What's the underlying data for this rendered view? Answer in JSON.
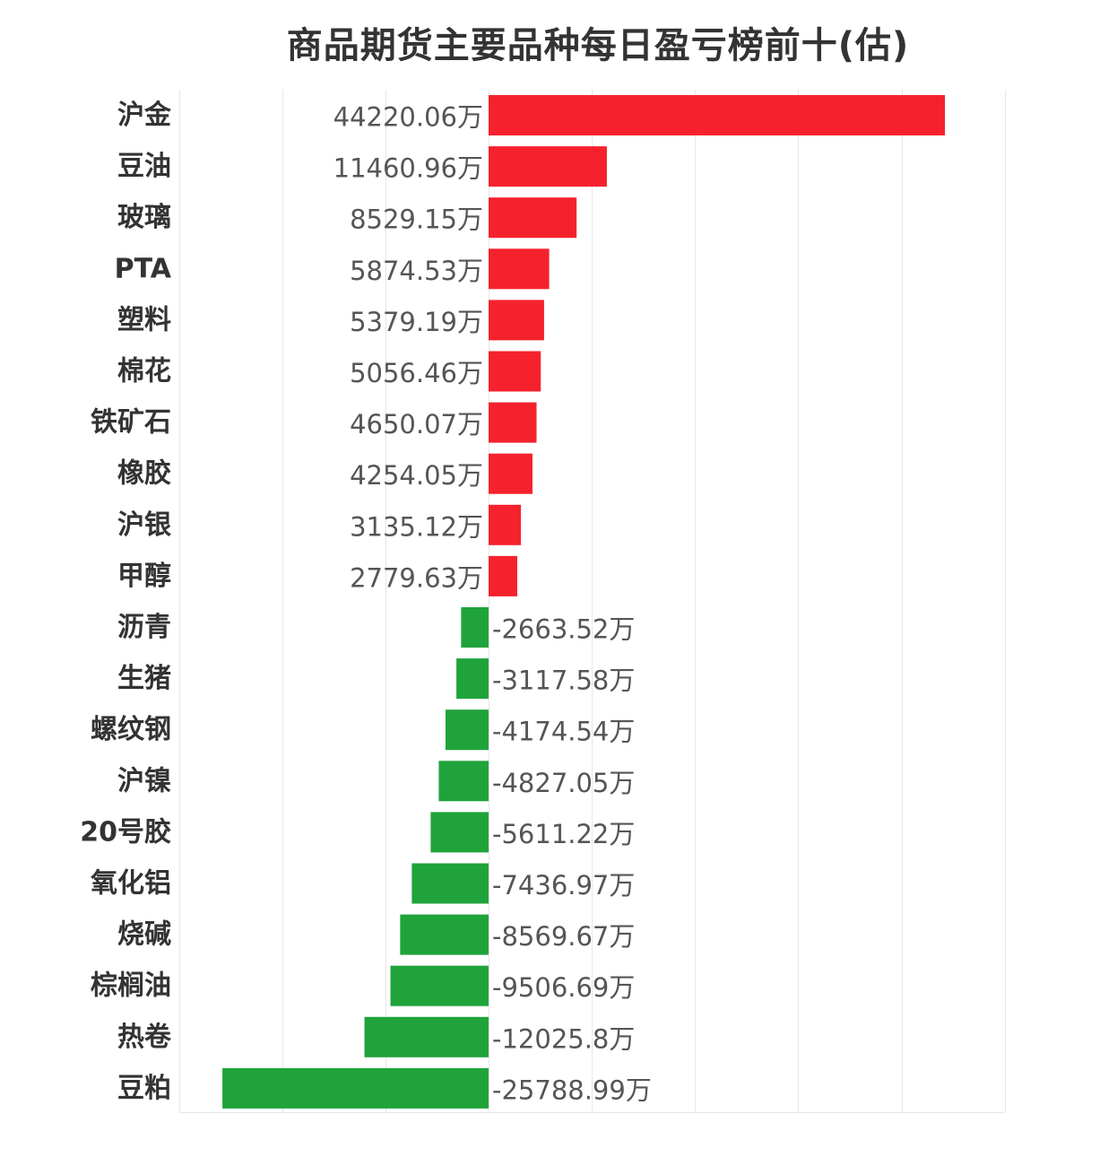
{
  "chart_data": {
    "type": "bar",
    "orientation": "horizontal",
    "title": "商品期货主要品种每日盈亏榜前十(估)",
    "unit": "万",
    "categories": [
      "沪金",
      "豆油",
      "玻璃",
      "PTA",
      "塑料",
      "棉花",
      "铁矿石",
      "橡胶",
      "沪银",
      "甲醇",
      "沥青",
      "生猪",
      "螺纹钢",
      "沪镍",
      "20号胶",
      "氧化铝",
      "烧碱",
      "棕榈油",
      "热卷",
      "豆粕"
    ],
    "values": [
      44220.06,
      11460.96,
      8529.15,
      5874.53,
      5379.19,
      5056.46,
      4650.07,
      4254.05,
      3135.12,
      2779.63,
      -2663.52,
      -3117.58,
      -4174.54,
      -4827.05,
      -5611.22,
      -7436.97,
      -8569.67,
      -9506.69,
      -12025.8,
      -25788.99
    ],
    "value_labels": [
      "44220.06万",
      "11460.96万",
      "8529.15万",
      "5874.53万",
      "5379.19万",
      "5056.46万",
      "4650.07万",
      "4254.05万",
      "3135.12万",
      "2779.63万",
      "-2663.52万",
      "-3117.58万",
      "-4174.54万",
      "-4827.05万",
      "-5611.22万",
      "-7436.97万",
      "-8569.67万",
      "-9506.69万",
      "-12025.8万",
      "-25788.99万"
    ],
    "xlim": [
      -30000,
      50000
    ],
    "grid_step": 10000,
    "grid": true,
    "colors": {
      "positive": "#f5222d",
      "negative": "#1fa33a",
      "grid": "#e6e6e6",
      "category_text": "#333333",
      "value_text": "#555555"
    }
  }
}
